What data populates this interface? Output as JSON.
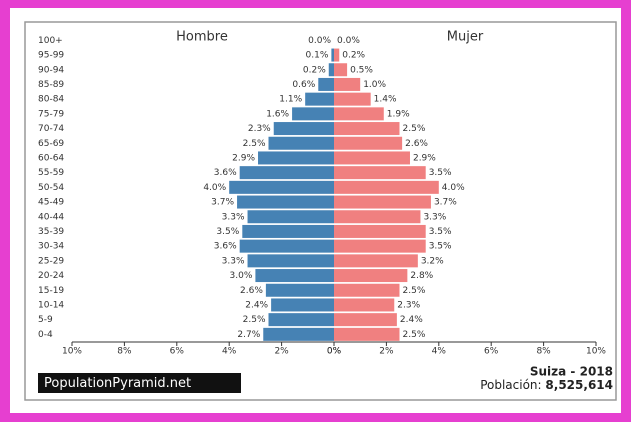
{
  "chart_data": {
    "type": "pyramid",
    "categories": [
      "100+",
      "95-99",
      "90-94",
      "85-89",
      "80-84",
      "75-79",
      "70-74",
      "65-69",
      "60-64",
      "55-59",
      "50-54",
      "45-49",
      "40-44",
      "35-39",
      "30-34",
      "25-29",
      "20-24",
      "15-19",
      "10-14",
      "5-9",
      "0-4"
    ],
    "series": [
      {
        "name": "Hombre",
        "color": "#4682b4",
        "values": [
          0.0,
          0.1,
          0.2,
          0.6,
          1.1,
          1.6,
          2.3,
          2.5,
          2.9,
          3.6,
          4.0,
          3.7,
          3.3,
          3.5,
          3.6,
          3.3,
          3.0,
          2.6,
          2.4,
          2.5,
          2.7
        ],
        "value_labels": [
          "0.0%",
          "0.1%",
          "0.2%",
          "0.6%",
          "1.1%",
          "1.6%",
          "2.3%",
          "2.5%",
          "2.9%",
          "3.6%",
          "4.0%",
          "3.7%",
          "3.3%",
          "3.5%",
          "3.6%",
          "3.3%",
          "3.0%",
          "2.6%",
          "2.4%",
          "2.5%",
          "2.7%"
        ]
      },
      {
        "name": "Mujer",
        "color": "#f08080",
        "values": [
          0.0,
          0.2,
          0.5,
          1.0,
          1.4,
          1.9,
          2.5,
          2.6,
          2.9,
          3.5,
          4.0,
          3.7,
          3.3,
          3.5,
          3.5,
          3.2,
          2.8,
          2.5,
          2.3,
          2.4,
          2.5
        ],
        "value_labels": [
          "0.0%",
          "0.2%",
          "0.5%",
          "1.0%",
          "1.4%",
          "1.9%",
          "2.5%",
          "2.6%",
          "2.9%",
          "3.5%",
          "4.0%",
          "3.7%",
          "3.3%",
          "3.5%",
          "3.5%",
          "3.2%",
          "2.8%",
          "2.5%",
          "2.3%",
          "2.4%",
          "2.5%"
        ]
      }
    ],
    "xlim": [
      0,
      10
    ],
    "xticks": [
      {
        "value": 0,
        "label": "0%"
      },
      {
        "value": 2,
        "label": "2%"
      },
      {
        "value": 4,
        "label": "4%"
      },
      {
        "value": 6,
        "label": "6%"
      },
      {
        "value": 8,
        "label": "8%"
      },
      {
        "value": 10,
        "label": "10%"
      }
    ]
  },
  "footer": {
    "brand": "PopulationPyramid.net",
    "country": "Suiza - 2018",
    "population_label": "Población:",
    "population": "8,525,614"
  }
}
